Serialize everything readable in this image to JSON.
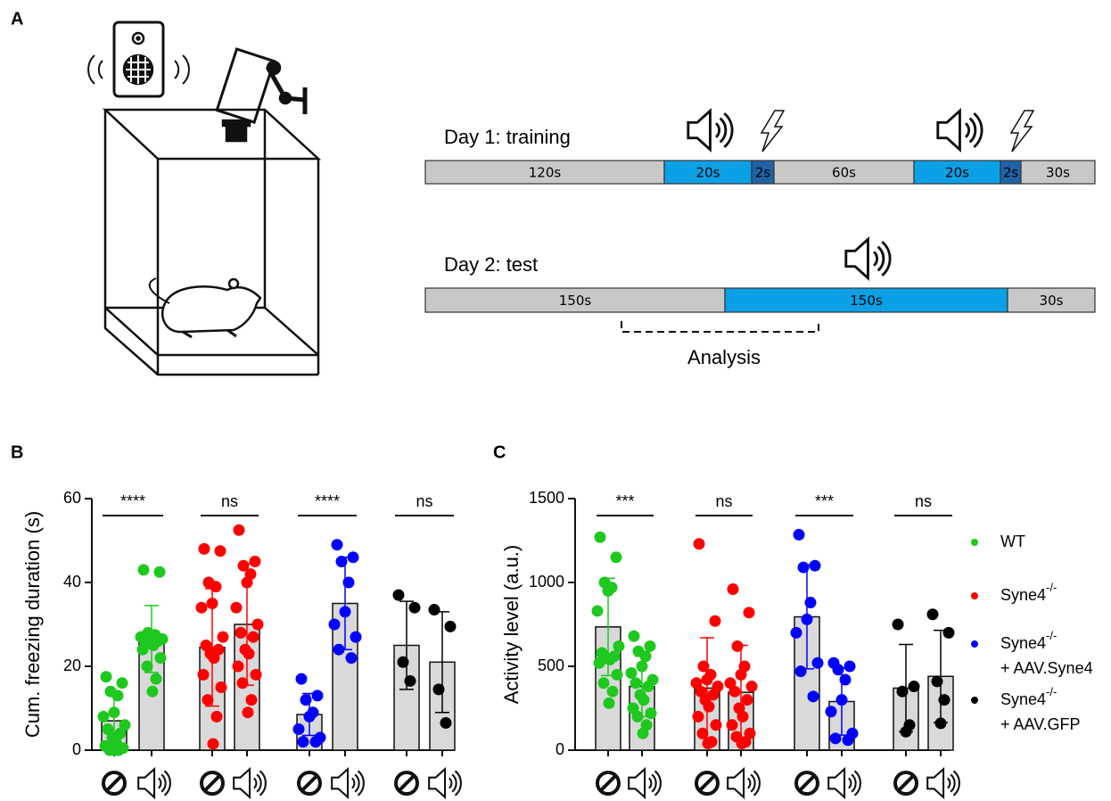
{
  "panel_labels": [
    "A",
    "B",
    "C"
  ],
  "protocol": {
    "day1": {
      "label": "Day 1: training",
      "segments": [
        "120s",
        "20s",
        "2s",
        "60s",
        "20s",
        "2s",
        "30s"
      ]
    },
    "day2": {
      "label": "Day 2: test",
      "segments": [
        "150s",
        "150s",
        "30s"
      ]
    },
    "analysis": "Analysis"
  },
  "chart_data": [
    {
      "type": "bar",
      "ylabel": "Cum. freezing duration (s)",
      "ylim": [
        0,
        60
      ],
      "yticks": [
        0,
        20,
        40,
        60
      ],
      "categories": [
        null,
        null
      ],
      "series": [
        {
          "color": "#1ec81e",
          "annotation": "****",
          "values": [
            7,
            26.5
          ],
          "errors": [
            6.5,
            8
          ],
          "points": [
            [
              17.5,
              16,
              14,
              13,
              9,
              8,
              6,
              5,
              4,
              3,
              2,
              1,
              0.5,
              0,
              0,
              0
            ],
            [
              43,
              42.5,
              28,
              27.5,
              27,
              27,
              26.5,
              26,
              26,
              25.5,
              25,
              24,
              22,
              20,
              17,
              14
            ]
          ]
        },
        {
          "color": "#ff0000",
          "annotation": "ns",
          "values": [
            24.5,
            30
          ],
          "errors": [
            14,
            14.5
          ],
          "points": [
            [
              48,
              47.5,
              40,
              39,
              35,
              34,
              27,
              25,
              24,
              23,
              22,
              18,
              15,
              12,
              8,
              1.5
            ],
            [
              52.5,
              45,
              44,
              42,
              40,
              34,
              30,
              28,
              27,
              24,
              23,
              20,
              18,
              16,
              12,
              9
            ]
          ]
        },
        {
          "color": "#0000ff",
          "annotation": "****",
          "values": [
            8.5,
            35
          ],
          "errors": [
            5,
            11
          ],
          "points": [
            [
              17,
              13,
              12,
              9,
              8,
              5,
              3,
              2,
              2
            ],
            [
              49,
              46,
              45,
              40,
              33,
              30,
              27,
              24,
              22
            ]
          ]
        },
        {
          "color": "#000000",
          "annotation": "ns",
          "values": [
            25,
            21
          ],
          "errors": [
            10.5,
            12
          ],
          "points": [
            [
              37,
              34,
              21,
              16.5
            ],
            [
              33.5,
              29.5,
              14.5,
              6.5
            ]
          ]
        }
      ]
    },
    {
      "type": "bar",
      "ylabel": "Activity level (a.u.)",
      "ylim": [
        0,
        1500
      ],
      "yticks": [
        0,
        500,
        1000,
        1500
      ],
      "categories": [
        null,
        null
      ],
      "legend": true,
      "legend_position": "right",
      "series": [
        {
          "name": "WT",
          "color": "#1ec81e",
          "annotation": "***",
          "values": [
            735,
            380
          ],
          "errors": [
            290,
            180
          ],
          "points": [
            [
              1270,
              1150,
              1000,
              970,
              950,
              830,
              620,
              580,
              560,
              550,
              540,
              520,
              450,
              400,
              350,
              280
            ],
            [
              680,
              620,
              590,
              560,
              500,
              460,
              420,
              400,
              380,
              330,
              300,
              250,
              220,
              200,
              150,
              100
            ]
          ]
        },
        {
          "name": "Syne4",
          "name_sup": "-/-",
          "color": "#ff0000",
          "annotation": "ns",
          "values": [
            370,
            345
          ],
          "errors": [
            300,
            280
          ],
          "points": [
            [
              1230,
              770,
              500,
              450,
              420,
              400,
              380,
              350,
              330,
              300,
              260,
              200,
              150,
              100,
              50,
              40
            ],
            [
              960,
              820,
              620,
              500,
              450,
              400,
              380,
              350,
              300,
              250,
              200,
              150,
              100,
              80,
              50,
              40
            ]
          ]
        },
        {
          "name": "Syne4",
          "name_sup": "-/-",
          "name_line2": "+ AAV.Syne4",
          "color": "#0000ff",
          "annotation": "***",
          "values": [
            795,
            290
          ],
          "errors": [
            310,
            200
          ],
          "points": [
            [
              1285,
              1100,
              1090,
              880,
              780,
              700,
              520,
              470,
              320
            ],
            [
              520,
              500,
              480,
              420,
              300,
              230,
              100,
              70,
              60
            ]
          ]
        },
        {
          "name": "Syne4",
          "name_sup": "-/-",
          "name_line2": "+ AAV.GFP",
          "color": "#000000",
          "annotation": "ns",
          "values": [
            370,
            440
          ],
          "errors": [
            260,
            275
          ],
          "points": [
            [
              750,
              380,
              350,
              150,
              110
            ],
            [
              810,
              700,
              410,
              300,
              160
            ]
          ]
        }
      ]
    }
  ]
}
